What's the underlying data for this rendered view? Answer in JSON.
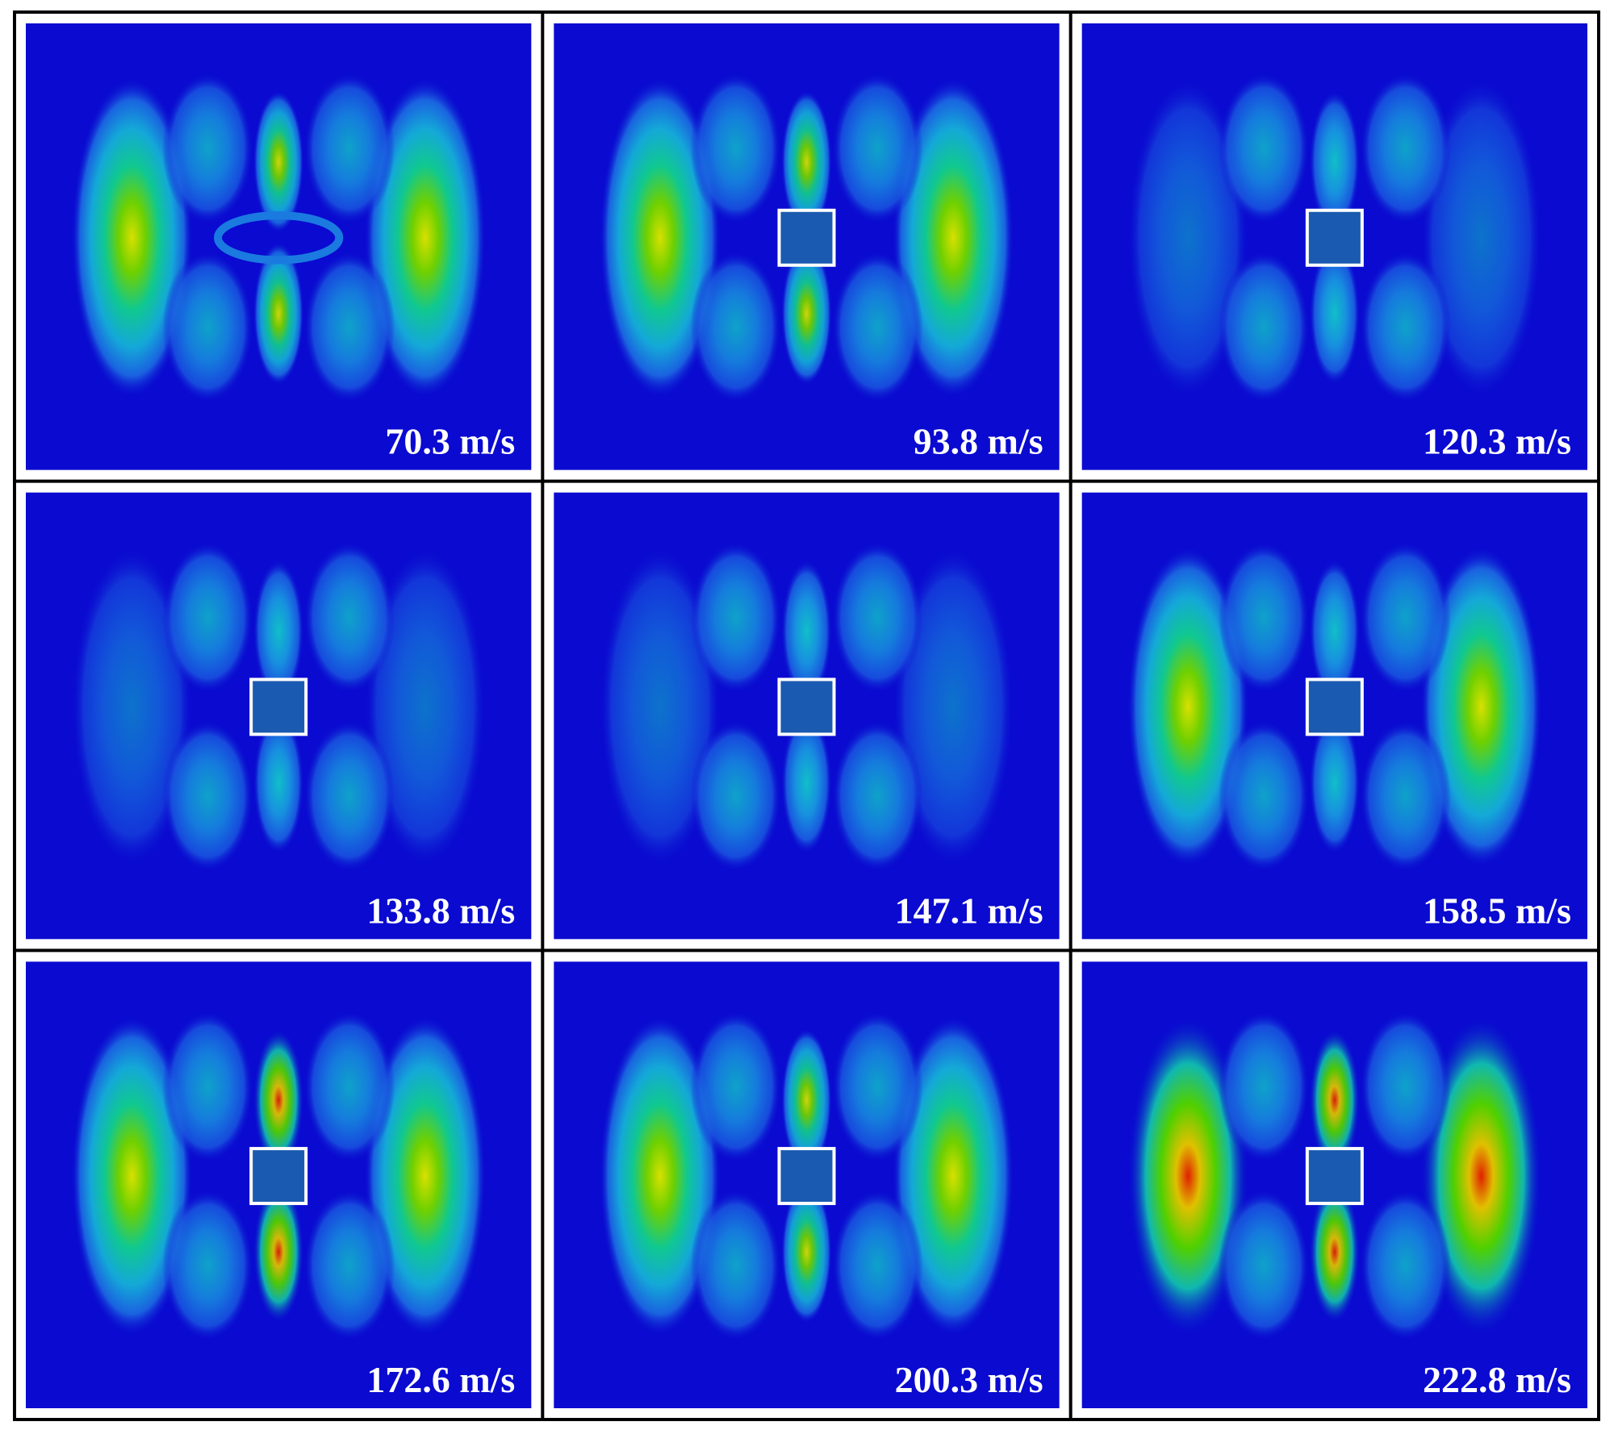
{
  "panels": [
    {
      "label": "70.3 m/s"
    },
    {
      "label": "93.8 m/s"
    },
    {
      "label": "120.3 m/s"
    },
    {
      "label": "133.8 m/s"
    },
    {
      "label": "147.1 m/s"
    },
    {
      "label": "158.5 m/s"
    },
    {
      "label": "172.6 m/s"
    },
    {
      "label": "200.3 m/s"
    },
    {
      "label": "222.8 m/s"
    }
  ]
}
